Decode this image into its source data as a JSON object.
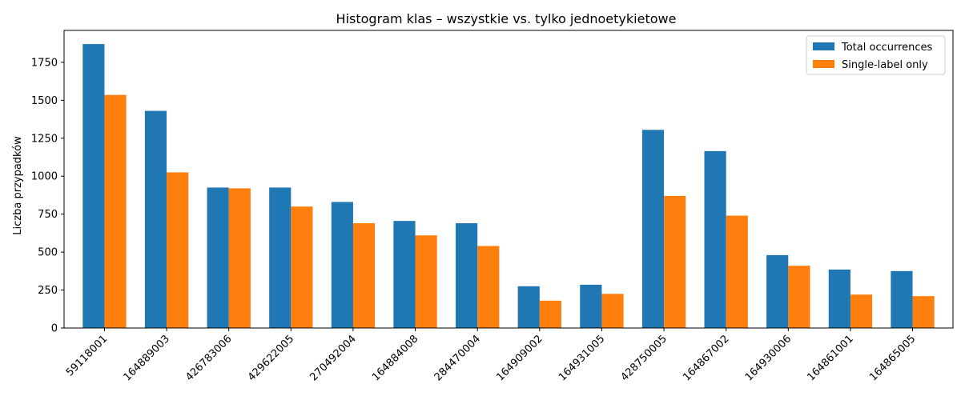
{
  "chart_data": {
    "type": "bar",
    "title": "Histogram klas – wszystkie vs. tylko jednoetykietowe",
    "xlabel": "",
    "ylabel": "Liczba przypadków",
    "categories": [
      "59118001",
      "164889003",
      "426783006",
      "429622005",
      "270492004",
      "164884008",
      "284470004",
      "164909002",
      "164931005",
      "428750005",
      "164867002",
      "164930006",
      "164861001",
      "164865005"
    ],
    "series": [
      {
        "name": "Total occurrences",
        "color": "#1f77b4",
        "values": [
          1870,
          1430,
          925,
          925,
          830,
          705,
          690,
          275,
          285,
          1305,
          1165,
          480,
          385,
          375
        ]
      },
      {
        "name": "Single-label only",
        "color": "#ff7f0e",
        "values": [
          1535,
          1025,
          920,
          800,
          690,
          610,
          540,
          180,
          225,
          870,
          740,
          410,
          220,
          210
        ]
      }
    ],
    "ylim": [
      0,
      1960
    ],
    "yticks": [
      0,
      250,
      500,
      750,
      1000,
      1250,
      1500,
      1750
    ],
    "grid": false,
    "legend": "top-right"
  }
}
